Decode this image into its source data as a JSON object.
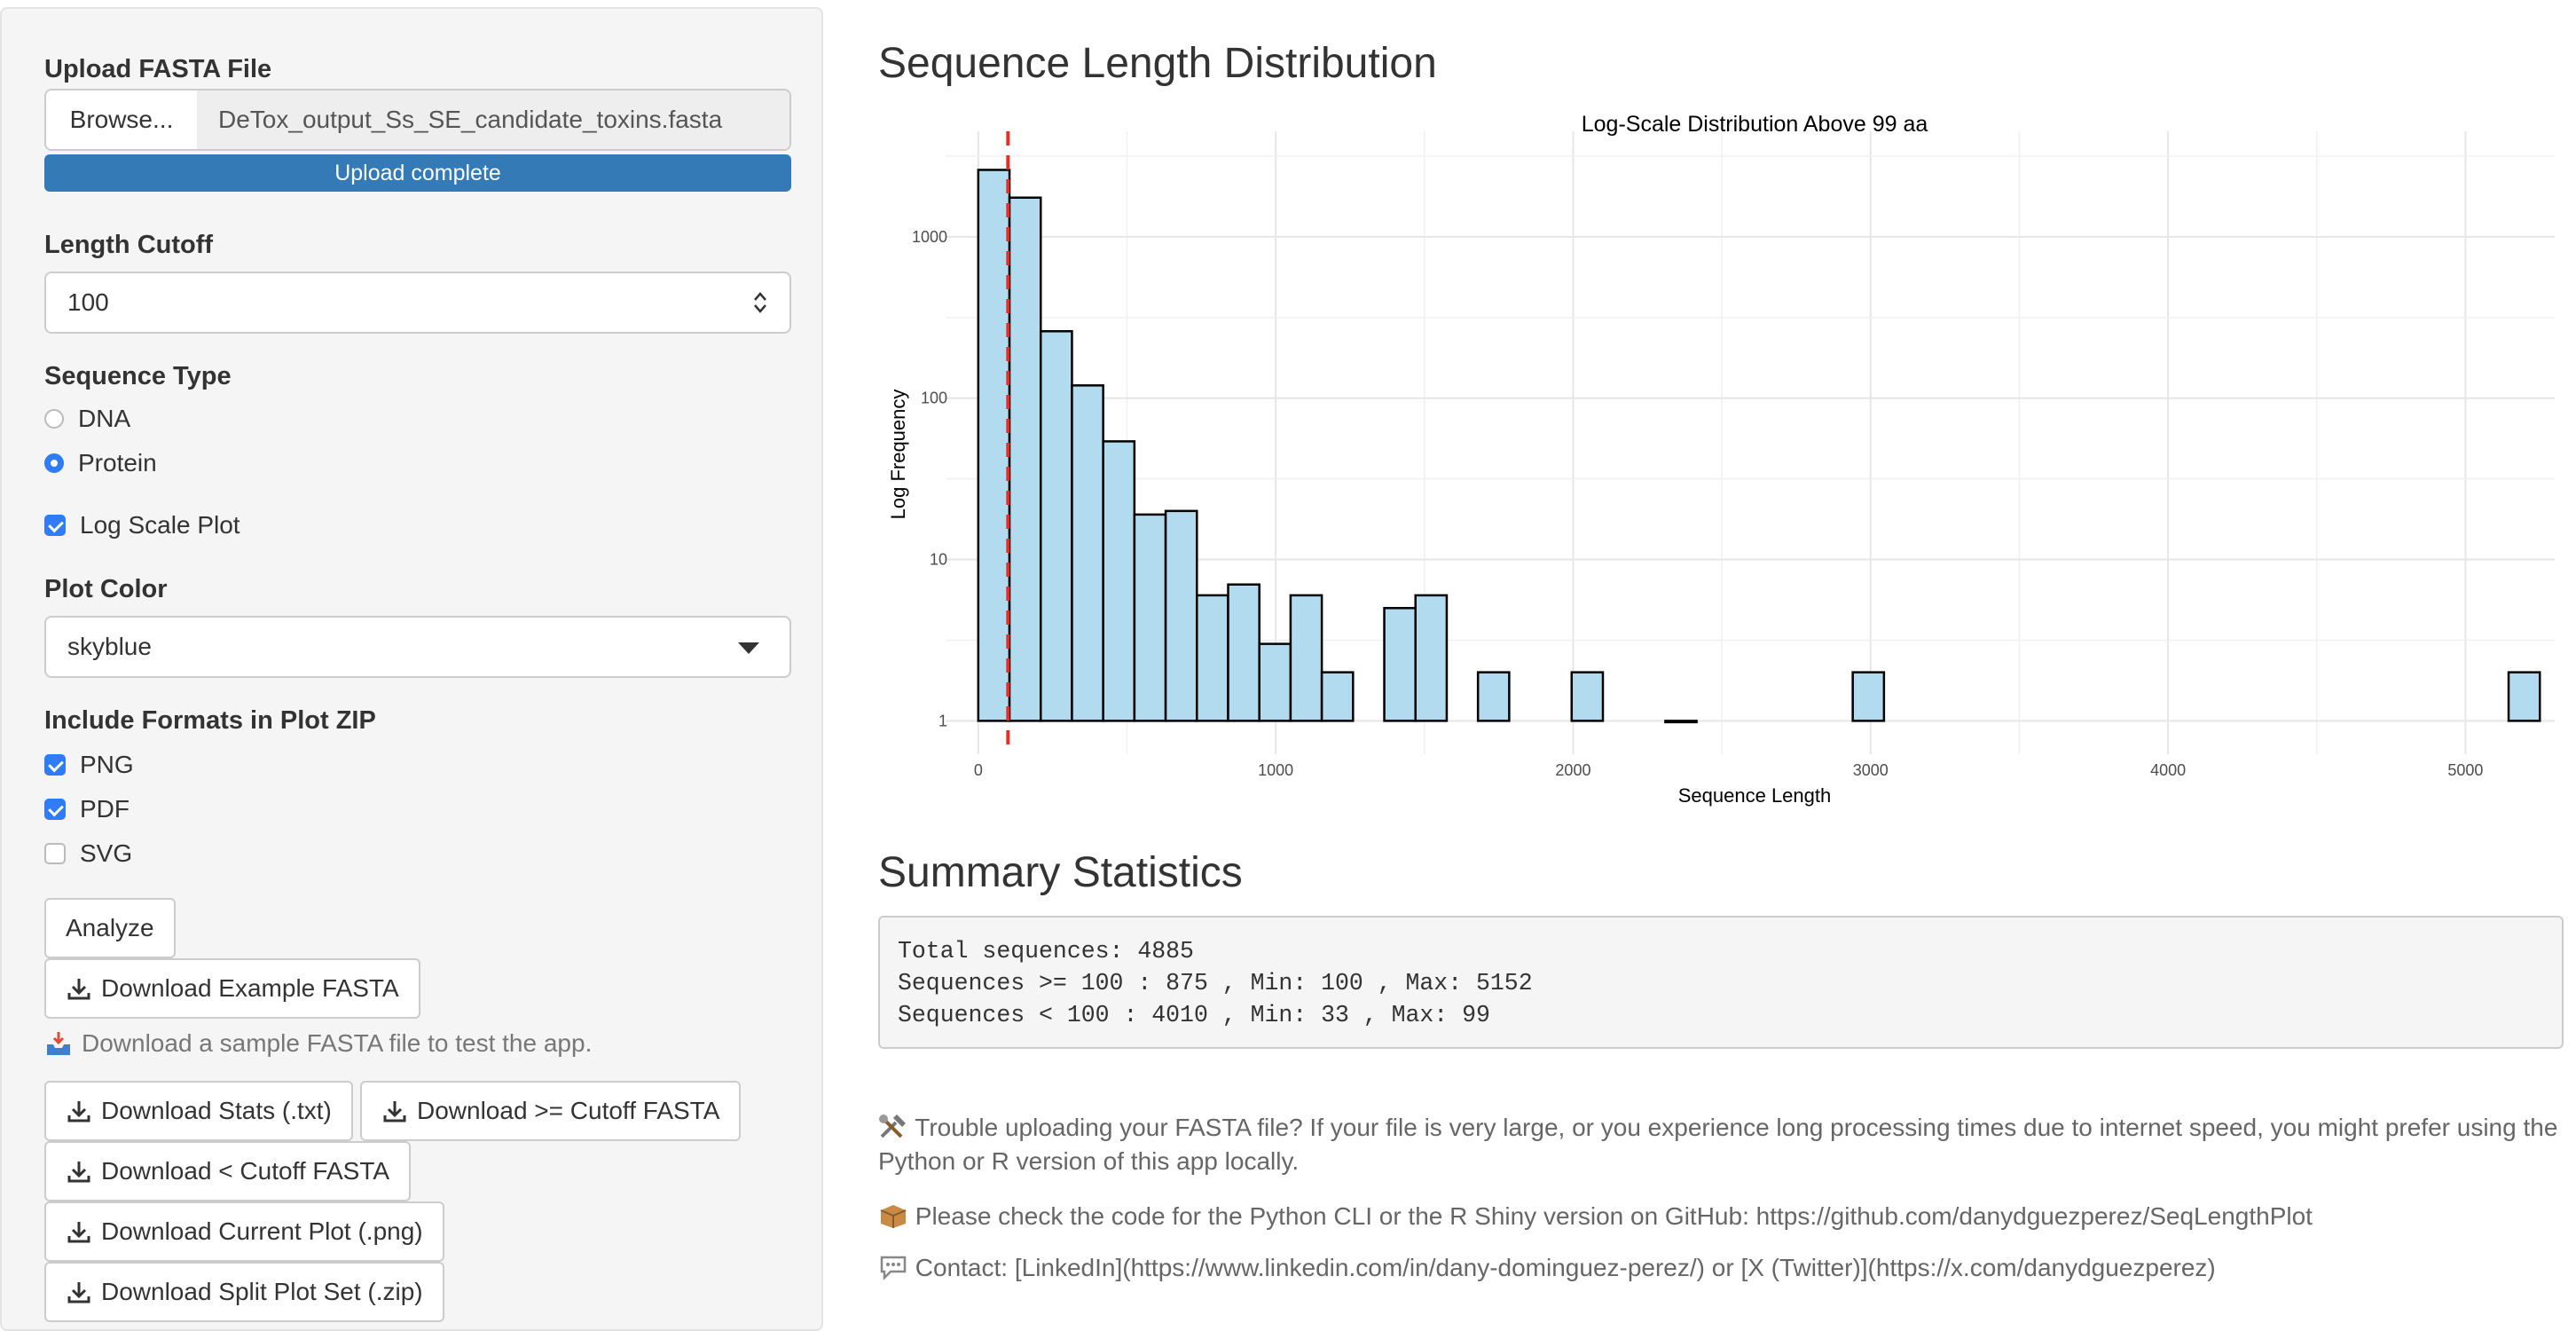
{
  "sidebar": {
    "upload_label": "Upload FASTA File",
    "browse_label": "Browse...",
    "file_name": "DeTox_output_Ss_SE_candidate_toxins.fasta",
    "progress_text": "Upload complete",
    "progress_percent": 100,
    "cutoff_label": "Length Cutoff",
    "cutoff_value": "100",
    "seq_type_label": "Sequence Type",
    "seq_types": [
      {
        "label": "DNA",
        "selected": false
      },
      {
        "label": "Protein",
        "selected": true
      }
    ],
    "log_scale_label": "Log Scale Plot",
    "log_scale_checked": true,
    "plot_color_label": "Plot Color",
    "plot_color_value": "skyblue",
    "formats_label": "Include Formats in Plot ZIP",
    "formats": [
      {
        "label": "PNG",
        "checked": true
      },
      {
        "label": "PDF",
        "checked": true
      },
      {
        "label": "SVG",
        "checked": false
      }
    ],
    "analyze_label": "Analyze",
    "download_example_label": "Download Example FASTA",
    "example_note": "Download a sample FASTA file to test the app.",
    "download_stats_label": "Download Stats (.txt)",
    "download_ge_label": "Download >= Cutoff FASTA",
    "download_lt_label": "Download < Cutoff FASTA",
    "download_plot_label": "Download Current Plot (.png)",
    "download_zip_label": "Download Split Plot Set (.zip)"
  },
  "main": {
    "dist_heading": "Sequence Length Distribution",
    "summary_heading": "Summary Statistics",
    "stats_lines": [
      "Total sequences: 4885",
      "Sequences >= 100 : 875 , Min: 100 , Max: 5152",
      "Sequences < 100 : 4010 , Min: 33 , Max: 99"
    ],
    "info_trouble": "Trouble uploading your FASTA file? If your file is very large, or you experience long processing times due to internet speed, you might prefer using the Python or R version of this app locally.",
    "info_code": "Please check the code for the Python CLI or the R Shiny version on GitHub: https://github.com/danydguezperez/SeqLengthPlot",
    "info_contact": "Contact: [LinkedIn](https://www.linkedin.com/in/dany-dominguez-perez/) or [X (Twitter)](https://x.com/danydguezperez)"
  },
  "chart_data": {
    "type": "bar",
    "title": "Log-Scale Distribution Above 99 aa",
    "xlabel": "Sequence Length",
    "ylabel": "Log Frequency",
    "y_scale": "log",
    "xlim": [
      -80,
      5300
    ],
    "ylim": [
      0.8,
      3500
    ],
    "x_ticks": [
      0,
      1000,
      2000,
      3000,
      4000,
      5000
    ],
    "y_ticks": [
      1,
      10,
      100,
      1000
    ],
    "y_tick_labels": [
      "1",
      "10",
      "100",
      "1000"
    ],
    "bin_width": 105,
    "bars": [
      {
        "x": 0,
        "count": 2600
      },
      {
        "x": 105,
        "count": 1750
      },
      {
        "x": 210,
        "count": 260
      },
      {
        "x": 315,
        "count": 120
      },
      {
        "x": 420,
        "count": 54
      },
      {
        "x": 525,
        "count": 19
      },
      {
        "x": 630,
        "count": 20
      },
      {
        "x": 735,
        "count": 6
      },
      {
        "x": 840,
        "count": 7
      },
      {
        "x": 945,
        "count": 3
      },
      {
        "x": 1050,
        "count": 6
      },
      {
        "x": 1155,
        "count": 2
      },
      {
        "x": 1365,
        "count": 5
      },
      {
        "x": 1470,
        "count": 6
      },
      {
        "x": 1680,
        "count": 2
      },
      {
        "x": 1995,
        "count": 2
      },
      {
        "x": 2310,
        "count": 1
      },
      {
        "x": 2940,
        "count": 2
      },
      {
        "x": 5145,
        "count": 2
      }
    ],
    "cutoff_line": 100,
    "bar_color": "#b3dbef",
    "cutoff_color": "#e0302a",
    "grid": true
  }
}
